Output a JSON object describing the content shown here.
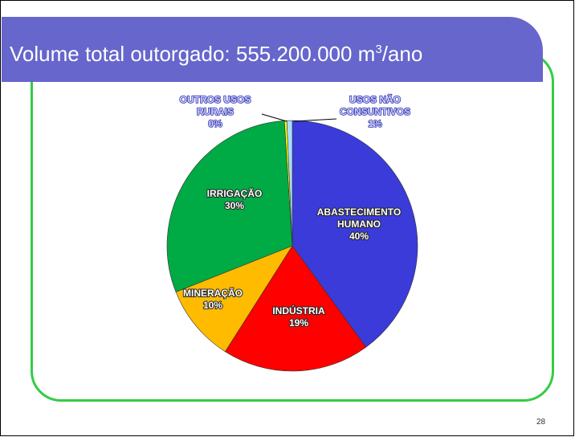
{
  "slide": {
    "title_main": "Volume total outorgado: 555.200.000 m",
    "title_sup": "3",
    "title_tail": "/ano",
    "page_number": "28"
  },
  "colors": {
    "title_bar": "#6666cc",
    "frame": "#33cc44"
  },
  "chart_data": {
    "type": "pie",
    "start_angle_deg": 0,
    "direction": "clockwise",
    "slices": [
      {
        "name": "ABASTECIMENTO HUMANO",
        "label": [
          "ABASTECIMENTO",
          "HUMANO"
        ],
        "percent_label": "40%",
        "value": 40,
        "color": "#3b3bd9",
        "label_style": "inside"
      },
      {
        "name": "INDÚSTRIA",
        "label": [
          "INDÚSTRIA"
        ],
        "percent_label": "19%",
        "value": 19,
        "color": "#ff0000",
        "label_style": "inside"
      },
      {
        "name": "MINERAÇÃO",
        "label": [
          "MINERAÇÃO"
        ],
        "percent_label": "10%",
        "value": 10,
        "color": "#ffbb00",
        "label_style": "inside"
      },
      {
        "name": "IRRIGAÇÃO",
        "label": [
          "IRRIGAÇÃO"
        ],
        "percent_label": "30%",
        "value": 30,
        "color": "#00aa44",
        "label_style": "inside"
      },
      {
        "name": "OUTROS USOS RURAIS",
        "label": [
          "OUTROS USOS",
          "RURAIS"
        ],
        "percent_label": "0%",
        "value": 0.3,
        "color": "#ffff00",
        "label_style": "outside"
      },
      {
        "name": "USOS NÃO CONSUNTIVOS",
        "label": [
          "USOS NÃO",
          "CONSUNTIVOS"
        ],
        "percent_label": "1%",
        "value": 0.7,
        "color": "#aaddff",
        "label_style": "outside"
      }
    ]
  }
}
